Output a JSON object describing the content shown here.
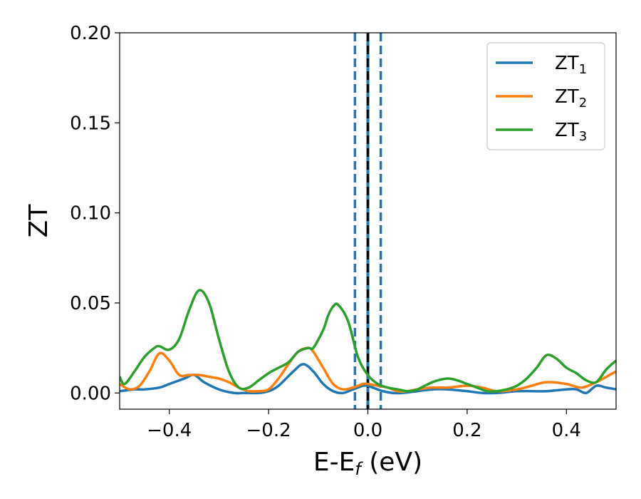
{
  "chart_data": {
    "type": "line",
    "title": "",
    "xlabel": {
      "main": "E-E",
      "sub": "f",
      "suffix": " (eV)"
    },
    "ylabel": "ZT",
    "xlim": [
      -0.5,
      0.5
    ],
    "ylim": [
      -0.009,
      0.2
    ],
    "x_ticks": [
      -0.4,
      -0.2,
      0.0,
      0.2,
      0.4
    ],
    "x_tick_labels": [
      "−0.4",
      "−0.2",
      "0.0",
      "0.2",
      "0.4"
    ],
    "y_ticks": [
      0.0,
      0.05,
      0.1,
      0.15,
      0.2
    ],
    "y_tick_labels": [
      "0.00",
      "0.05",
      "0.10",
      "0.15",
      "0.20"
    ],
    "grid": false,
    "legend_position": "top-right",
    "vertical_lines": [
      {
        "x": -0.026,
        "style": "dashed",
        "color": "#1f77b4"
      },
      {
        "x": 0.026,
        "style": "dashed",
        "color": "#1f77b4"
      },
      {
        "x": 0.0,
        "style": "solid",
        "color": "#1f77b4"
      },
      {
        "x": 0.0,
        "style": "dashed",
        "color": "#000000"
      }
    ],
    "series": [
      {
        "name": "ZT",
        "name_sub": "1",
        "color": "#1f77b4",
        "x": [
          -0.5,
          -0.47,
          -0.45,
          -0.42,
          -0.4,
          -0.37,
          -0.35,
          -0.33,
          -0.3,
          -0.27,
          -0.25,
          -0.22,
          -0.2,
          -0.18,
          -0.15,
          -0.13,
          -0.11,
          -0.09,
          -0.07,
          -0.05,
          -0.03,
          -0.01,
          0.0,
          0.01,
          0.03,
          0.05,
          0.07,
          0.1,
          0.13,
          0.16,
          0.2,
          0.23,
          0.26,
          0.3,
          0.33,
          0.36,
          0.4,
          0.42,
          0.44,
          0.46,
          0.48,
          0.5
        ],
        "y": [
          0.001,
          0.002,
          0.002,
          0.003,
          0.005,
          0.008,
          0.01,
          0.006,
          0.002,
          0.0,
          0.0,
          0.0,
          0.001,
          0.004,
          0.012,
          0.016,
          0.012,
          0.005,
          0.001,
          0.0,
          0.002,
          0.004,
          0.004,
          0.003,
          0.001,
          0.0,
          0.0,
          0.001,
          0.002,
          0.002,
          0.001,
          0.0,
          0.0,
          0.001,
          0.001,
          0.001,
          0.002,
          0.002,
          0.0,
          0.004,
          0.003,
          0.002
        ]
      },
      {
        "name": "ZT",
        "name_sub": "2",
        "color": "#ff7f0e",
        "x": [
          -0.5,
          -0.48,
          -0.46,
          -0.44,
          -0.42,
          -0.4,
          -0.38,
          -0.36,
          -0.34,
          -0.32,
          -0.3,
          -0.28,
          -0.26,
          -0.24,
          -0.22,
          -0.2,
          -0.18,
          -0.16,
          -0.14,
          -0.12,
          -0.11,
          -0.09,
          -0.07,
          -0.05,
          -0.03,
          -0.01,
          0.0,
          0.02,
          0.04,
          0.06,
          0.08,
          0.1,
          0.13,
          0.16,
          0.2,
          0.23,
          0.26,
          0.3,
          0.33,
          0.36,
          0.4,
          0.43,
          0.46,
          0.5
        ],
        "y": [
          0.005,
          0.002,
          0.004,
          0.012,
          0.022,
          0.018,
          0.01,
          0.01,
          0.01,
          0.009,
          0.008,
          0.006,
          0.003,
          0.001,
          0.001,
          0.002,
          0.008,
          0.016,
          0.023,
          0.025,
          0.023,
          0.014,
          0.005,
          0.002,
          0.003,
          0.005,
          0.005,
          0.004,
          0.003,
          0.001,
          0.001,
          0.002,
          0.003,
          0.003,
          0.004,
          0.003,
          0.001,
          0.002,
          0.004,
          0.006,
          0.005,
          0.003,
          0.006,
          0.012
        ]
      },
      {
        "name": "ZT",
        "name_sub": "3",
        "color": "#2ca02c",
        "x": [
          -0.5,
          -0.49,
          -0.47,
          -0.45,
          -0.43,
          -0.42,
          -0.4,
          -0.38,
          -0.36,
          -0.34,
          -0.32,
          -0.3,
          -0.28,
          -0.26,
          -0.24,
          -0.22,
          -0.2,
          -0.18,
          -0.16,
          -0.14,
          -0.12,
          -0.11,
          -0.09,
          -0.08,
          -0.07,
          -0.06,
          -0.04,
          -0.02,
          0.0,
          0.02,
          0.04,
          0.06,
          0.08,
          0.1,
          0.13,
          0.16,
          0.18,
          0.2,
          0.22,
          0.24,
          0.26,
          0.28,
          0.3,
          0.32,
          0.34,
          0.36,
          0.38,
          0.4,
          0.42,
          0.44,
          0.46,
          0.48,
          0.5
        ],
        "y": [
          0.009,
          0.005,
          0.012,
          0.02,
          0.025,
          0.026,
          0.024,
          0.03,
          0.046,
          0.057,
          0.05,
          0.03,
          0.012,
          0.003,
          0.003,
          0.007,
          0.011,
          0.014,
          0.017,
          0.023,
          0.025,
          0.025,
          0.035,
          0.043,
          0.048,
          0.049,
          0.04,
          0.02,
          0.01,
          0.005,
          0.003,
          0.002,
          0.001,
          0.002,
          0.006,
          0.008,
          0.007,
          0.005,
          0.003,
          0.001,
          0.001,
          0.002,
          0.004,
          0.008,
          0.014,
          0.021,
          0.019,
          0.014,
          0.011,
          0.007,
          0.006,
          0.013,
          0.018
        ]
      }
    ]
  }
}
